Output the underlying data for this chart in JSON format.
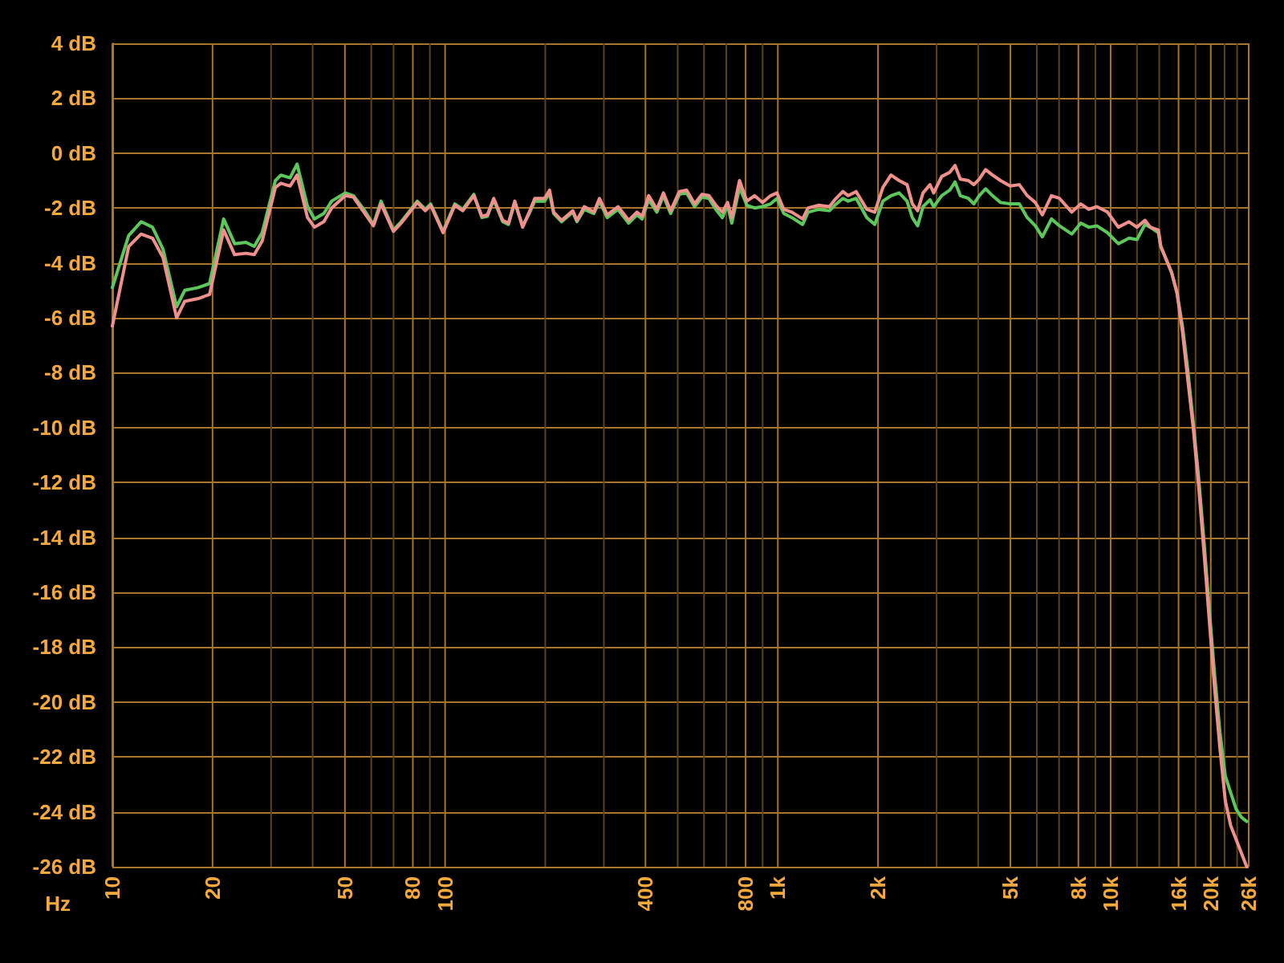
{
  "chart_data": {
    "type": "line",
    "xlabel": "Hz",
    "log": "x",
    "grid": true,
    "marker": "none",
    "line_style": "solid",
    "xlim": [
      10,
      26000
    ],
    "ylim": [
      -26,
      4
    ],
    "xticks": [
      10,
      20,
      {
        "value": 30,
        "label": null
      },
      {
        "value": 40,
        "label": null
      },
      50,
      {
        "value": 60,
        "label": null
      },
      {
        "value": 70,
        "label": null
      },
      80,
      {
        "value": 90,
        "label": null
      },
      100,
      {
        "value": 200,
        "label": null
      },
      {
        "value": 300,
        "label": null
      },
      400,
      {
        "value": 500,
        "label": null
      },
      {
        "value": 600,
        "label": null
      },
      {
        "value": 700,
        "label": null
      },
      800,
      {
        "value": 900,
        "label": null
      },
      {
        "value": 1000,
        "label": "1k"
      },
      {
        "value": 2000,
        "label": "2k"
      },
      {
        "value": 3000,
        "label": null
      },
      {
        "value": 4000,
        "label": null
      },
      {
        "value": 5000,
        "label": "5k"
      },
      {
        "value": 6000,
        "label": null
      },
      {
        "value": 7000,
        "label": null
      },
      {
        "value": 8000,
        "label": "8k"
      },
      {
        "value": 9000,
        "label": null
      },
      {
        "value": 10000,
        "label": "10k"
      },
      {
        "value": 12000,
        "label": null
      },
      {
        "value": 14000,
        "label": null
      },
      {
        "value": 16000,
        "label": "16k"
      },
      {
        "value": 18000,
        "label": null
      },
      {
        "value": 20000,
        "label": "20k"
      },
      {
        "value": 22000,
        "label": null
      },
      {
        "value": 24000,
        "label": null
      },
      {
        "value": 26000,
        "label": "26k"
      }
    ],
    "yticks": [
      {
        "value": 4,
        "label": "4 dB"
      },
      {
        "value": 2,
        "label": "2 dB"
      },
      {
        "value": 0,
        "label": "0 dB"
      },
      {
        "value": -2,
        "label": "-2 dB"
      },
      {
        "value": -4,
        "label": "-4 dB"
      },
      {
        "value": -6,
        "label": "-6 dB"
      },
      {
        "value": -8,
        "label": "-8 dB"
      },
      {
        "value": -10,
        "label": "-10 dB"
      },
      {
        "value": -12,
        "label": "-12 dB"
      },
      {
        "value": -14,
        "label": "-14 dB"
      },
      {
        "value": -16,
        "label": "-16 dB"
      },
      {
        "value": -18,
        "label": "-18 dB"
      },
      {
        "value": -20,
        "label": "-20 dB"
      },
      {
        "value": -22,
        "label": "-22 dB"
      },
      {
        "value": -24,
        "label": "-24 dB"
      },
      {
        "value": -26,
        "label": "-26 dB"
      }
    ],
    "x": [
      10,
      11.2,
      12.2,
      13.2,
      14.2,
      15.6,
      16.5,
      18.1,
      19.6,
      21.6,
      23.3,
      25.2,
      26.7,
      28.2,
      30.9,
      32.1,
      34.2,
      35.9,
      38.6,
      40.5,
      43.2,
      45.6,
      50.1,
      53,
      57,
      60.9,
      64.2,
      69.9,
      73.8,
      82.5,
      87.2,
      90.5,
      98.6,
      107,
      113,
      122,
      129,
      134,
      140,
      149,
      155,
      162,
      171,
      179,
      186,
      199,
      206,
      212,
      224,
      242,
      249,
      262,
      280,
      291,
      307,
      331,
      356,
      377,
      391,
      409,
      433,
      453,
      476,
      506,
      532,
      562,
      592,
      621,
      651,
      681,
      706,
      727,
      767,
      807,
      851,
      899,
      951,
      994,
      1042,
      1102,
      1187,
      1232,
      1327,
      1429,
      1483,
      1568,
      1627,
      1719,
      1851,
      1956,
      2068,
      2188,
      2314,
      2445,
      2536,
      2631,
      2731,
      2866,
      2940,
      3107,
      3285,
      3408,
      3535,
      3738,
      3881,
      4027,
      4210,
      4416,
      4670,
      4990,
      5315,
      5618,
      5940,
      6234,
      6641,
      7021,
      7643,
      8135,
      8600,
      9090,
      9790,
      10550,
      11360,
      12000,
      12680,
      13160,
      13920,
      14150,
      15250,
      15840,
      16440,
      17060,
      17710,
      18380,
      19070,
      19790,
      20540,
      21310,
      22120,
      22950,
      23820,
      24720,
      25650
    ],
    "series": [
      {
        "color": "#5cc85c",
        "values": [
          -4.9,
          -3.0,
          -2.5,
          -2.7,
          -3.5,
          -5.6,
          -5.0,
          -4.9,
          -4.75,
          -2.4,
          -3.3,
          -3.25,
          -3.4,
          -2.9,
          -1.0,
          -0.8,
          -0.9,
          -0.4,
          -1.95,
          -2.4,
          -2.2,
          -1.75,
          -1.45,
          -1.55,
          -2.05,
          -2.6,
          -1.75,
          -2.8,
          -2.5,
          -1.75,
          -2.05,
          -1.85,
          -2.85,
          -1.85,
          -2.05,
          -1.5,
          -2.35,
          -2.3,
          -1.7,
          -2.5,
          -2.6,
          -1.8,
          -2.65,
          -2.2,
          -1.75,
          -1.75,
          -1.45,
          -2.2,
          -2.5,
          -2.15,
          -2.5,
          -2.05,
          -2.2,
          -1.75,
          -2.35,
          -2.05,
          -2.55,
          -2.25,
          -2.4,
          -1.7,
          -2.15,
          -1.55,
          -2.2,
          -1.5,
          -1.45,
          -1.95,
          -1.6,
          -1.65,
          -2.05,
          -2.35,
          -1.9,
          -2.55,
          -1.25,
          -1.9,
          -2.0,
          -1.95,
          -1.85,
          -1.65,
          -2.2,
          -2.35,
          -2.6,
          -2.15,
          -2.05,
          -2.1,
          -1.9,
          -1.65,
          -1.75,
          -1.65,
          -2.35,
          -2.6,
          -1.75,
          -1.55,
          -1.45,
          -1.75,
          -2.35,
          -2.65,
          -1.95,
          -1.7,
          -1.95,
          -1.55,
          -1.35,
          -1.05,
          -1.55,
          -1.65,
          -1.85,
          -1.55,
          -1.3,
          -1.55,
          -1.8,
          -1.85,
          -1.85,
          -2.35,
          -2.65,
          -3.05,
          -2.4,
          -2.65,
          -2.95,
          -2.55,
          -2.7,
          -2.65,
          -2.9,
          -3.3,
          -3.1,
          -3.15,
          -2.6,
          -2.7,
          -2.9,
          -3.4,
          -4.35,
          -5.1,
          -6.3,
          -7.9,
          -9.8,
          -11.8,
          -14.1,
          -16.6,
          -19.0,
          -21.1,
          -22.7,
          -23.3,
          -23.9,
          -24.2,
          -24.35
        ]
      },
      {
        "color": "#f0908c",
        "values": [
          -6.3,
          -3.4,
          -2.95,
          -3.1,
          -3.8,
          -6.0,
          -5.4,
          -5.3,
          -5.15,
          -2.8,
          -3.7,
          -3.65,
          -3.7,
          -3.2,
          -1.25,
          -1.1,
          -1.2,
          -0.8,
          -2.35,
          -2.7,
          -2.5,
          -2.0,
          -1.55,
          -1.6,
          -2.15,
          -2.65,
          -1.85,
          -2.85,
          -2.55,
          -1.8,
          -2.1,
          -1.9,
          -2.9,
          -1.9,
          -2.1,
          -1.55,
          -2.3,
          -2.25,
          -1.65,
          -2.45,
          -2.55,
          -1.75,
          -2.7,
          -2.15,
          -1.65,
          -1.65,
          -1.35,
          -2.15,
          -2.45,
          -2.1,
          -2.45,
          -1.95,
          -2.15,
          -1.65,
          -2.25,
          -1.95,
          -2.45,
          -2.15,
          -2.3,
          -1.55,
          -2.05,
          -1.45,
          -2.1,
          -1.4,
          -1.35,
          -1.85,
          -1.5,
          -1.55,
          -1.9,
          -2.15,
          -1.8,
          -2.35,
          -1.0,
          -1.75,
          -1.55,
          -1.8,
          -1.55,
          -1.45,
          -2.05,
          -2.15,
          -2.4,
          -2.0,
          -1.9,
          -1.95,
          -1.7,
          -1.4,
          -1.55,
          -1.4,
          -2.05,
          -2.15,
          -1.25,
          -0.8,
          -1.0,
          -1.15,
          -1.85,
          -2.1,
          -1.45,
          -1.15,
          -1.45,
          -0.85,
          -0.7,
          -0.45,
          -0.95,
          -1.0,
          -1.15,
          -0.95,
          -0.6,
          -0.8,
          -1.0,
          -1.2,
          -1.15,
          -1.55,
          -1.8,
          -2.25,
          -1.55,
          -1.65,
          -2.15,
          -1.85,
          -2.05,
          -1.95,
          -2.15,
          -2.7,
          -2.5,
          -2.7,
          -2.45,
          -2.7,
          -2.8,
          -3.4,
          -4.35,
          -5.1,
          -6.5,
          -8.25,
          -10.0,
          -12.1,
          -14.5,
          -17.0,
          -19.5,
          -21.7,
          -23.6,
          -24.5,
          -25.0,
          -25.5,
          -26.0
        ]
      }
    ]
  }
}
